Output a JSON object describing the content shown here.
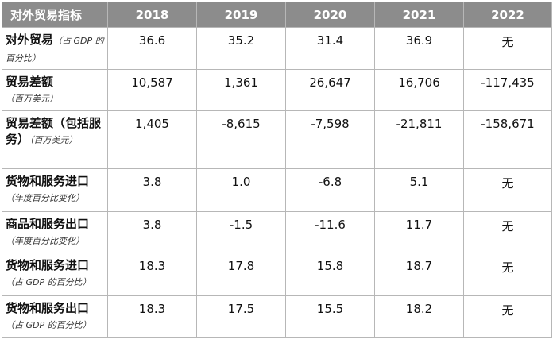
{
  "table": {
    "headers": [
      "对外贸易指标",
      "2018",
      "2019",
      "2020",
      "2021",
      "2022"
    ],
    "rows": [
      {
        "label": "对外贸易",
        "note": "（占 GDP 的百分比）",
        "values": [
          "36.6",
          "35.2",
          "31.4",
          "36.9",
          "无"
        ]
      },
      {
        "label": "贸易差额",
        "note": "（百万美元）",
        "values": [
          "10,587",
          "1,361",
          "26,647",
          "16,706",
          "-117,435"
        ]
      },
      {
        "label": "贸易差额（包括服务）",
        "note": "（百万美元）",
        "values": [
          "1,405",
          "-8,615",
          "-7,598",
          "-21,811",
          "-158,671"
        ]
      },
      {
        "label": "货物和服务进口",
        "note": "（年度百分比变化）",
        "values": [
          "3.8",
          "1.0",
          "-6.8",
          "5.1",
          "无"
        ]
      },
      {
        "label": "商品和服务出口",
        "note": "（年度百分比变化）",
        "values": [
          "3.8",
          "-1.5",
          "-11.6",
          "11.7",
          "无"
        ]
      },
      {
        "label": "货物和服务进口",
        "note": "（占 GDP 的百分比）",
        "values": [
          "18.3",
          "17.8",
          "15.8",
          "18.7",
          "无"
        ]
      },
      {
        "label": "货物和服务出口",
        "note": "（占 GDP 的百分比）",
        "values": [
          "18.3",
          "17.5",
          "15.5",
          "18.2",
          "无"
        ]
      }
    ]
  }
}
